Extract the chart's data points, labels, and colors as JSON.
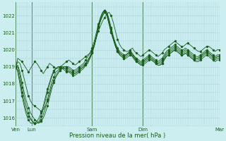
{
  "title": "Pression niveau de la mer( hPa )",
  "bg_color": "#cceef0",
  "grid_color": "#aad4d8",
  "line_color": "#1a5c1a",
  "marker_color": "#1a5c1a",
  "ylim": [
    1015.5,
    1022.8
  ],
  "yticks": [
    1016,
    1017,
    1018,
    1019,
    1020,
    1021,
    1022
  ],
  "xlabel_color": "#1a5c1a",
  "day_labels": [
    "Ven",
    "Lun",
    "Sam",
    "Dim",
    "Mar"
  ],
  "day_positions": [
    0.0,
    0.08,
    0.375,
    0.625,
    1.0
  ],
  "total_points": 97,
  "series": [
    [
      1019.0,
      1019.5,
      1019.4,
      1019.3,
      1019.1,
      1018.9,
      1018.7,
      1018.9,
      1019.1,
      1019.3,
      1019.2,
      1019.0,
      1018.8,
      1018.6,
      1018.8,
      1019.0,
      1019.2,
      1019.1,
      1019.0,
      1018.9,
      1018.9,
      1019.0,
      1019.1,
      1019.2,
      1019.3,
      1019.4,
      1019.3,
      1019.2,
      1019.1,
      1019.2,
      1019.3,
      1019.4,
      1019.5,
      1019.6,
      1019.7,
      1019.8,
      1020.0,
      1020.3,
      1020.7,
      1021.1,
      1021.4,
      1021.7,
      1021.9,
      1022.1,
      1022.2,
      1022.0,
      1021.6,
      1021.1,
      1020.6,
      1020.3,
      1020.1,
      1020.0,
      1019.9,
      1019.9,
      1020.0,
      1020.1,
      1019.9,
      1019.8,
      1019.7,
      1019.6,
      1019.7,
      1019.8,
      1019.9,
      1020.0,
      1019.9,
      1019.8,
      1019.7,
      1019.6,
      1019.7,
      1019.8,
      1020.0,
      1020.1,
      1020.2,
      1020.3,
      1020.4,
      1020.5,
      1020.4,
      1020.3,
      1020.2,
      1020.2,
      1020.3,
      1020.4,
      1020.3,
      1020.2,
      1020.1,
      1020.0,
      1019.9,
      1019.9,
      1020.0,
      1020.1,
      1020.2,
      1020.2,
      1020.1,
      1020.0,
      1019.9,
      1020.0,
      1020.0
    ],
    [
      1019.0,
      1019.3,
      1019.2,
      1018.8,
      1018.3,
      1017.8,
      1017.3,
      1017.0,
      1016.8,
      1016.7,
      1016.6,
      1016.5,
      1016.4,
      1016.5,
      1016.7,
      1017.0,
      1017.4,
      1017.9,
      1018.2,
      1018.5,
      1018.7,
      1018.8,
      1018.9,
      1019.0,
      1019.0,
      1019.0,
      1018.9,
      1018.8,
      1018.8,
      1018.9,
      1019.0,
      1019.1,
      1019.2,
      1019.4,
      1019.6,
      1019.8,
      1020.1,
      1020.5,
      1021.0,
      1021.5,
      1021.9,
      1022.2,
      1022.3,
      1022.2,
      1021.8,
      1021.3,
      1020.8,
      1020.4,
      1020.1,
      1019.9,
      1019.8,
      1019.7,
      1019.7,
      1019.8,
      1019.9,
      1019.8,
      1019.6,
      1019.5,
      1019.4,
      1019.3,
      1019.4,
      1019.5,
      1019.6,
      1019.7,
      1019.6,
      1019.5,
      1019.4,
      1019.3,
      1019.4,
      1019.5,
      1019.7,
      1019.9,
      1020.0,
      1020.1,
      1020.2,
      1020.3,
      1020.2,
      1020.1,
      1020.0,
      1020.0,
      1020.1,
      1020.0,
      1019.9,
      1019.8,
      1019.7,
      1019.6,
      1019.6,
      1019.7,
      1019.8,
      1019.9,
      1020.0,
      1019.9,
      1019.8,
      1019.7,
      1019.6,
      1019.7,
      1019.7
    ],
    [
      1019.0,
      1019.1,
      1018.7,
      1018.1,
      1017.5,
      1017.0,
      1016.6,
      1016.3,
      1016.1,
      1015.9,
      1015.8,
      1015.7,
      1015.8,
      1016.0,
      1016.3,
      1016.7,
      1017.2,
      1017.7,
      1018.1,
      1018.4,
      1018.6,
      1018.8,
      1018.9,
      1018.9,
      1018.9,
      1018.8,
      1018.7,
      1018.6,
      1018.6,
      1018.7,
      1018.8,
      1018.9,
      1019.0,
      1019.2,
      1019.4,
      1019.6,
      1019.9,
      1020.3,
      1020.8,
      1021.4,
      1021.9,
      1022.2,
      1022.3,
      1022.2,
      1021.7,
      1021.2,
      1020.7,
      1020.3,
      1020.0,
      1019.8,
      1019.7,
      1019.6,
      1019.7,
      1019.8,
      1019.8,
      1019.7,
      1019.5,
      1019.4,
      1019.3,
      1019.2,
      1019.3,
      1019.4,
      1019.5,
      1019.6,
      1019.5,
      1019.4,
      1019.3,
      1019.2,
      1019.3,
      1019.4,
      1019.6,
      1019.8,
      1019.9,
      1020.0,
      1020.1,
      1020.2,
      1020.1,
      1020.0,
      1019.9,
      1019.9,
      1020.0,
      1019.9,
      1019.8,
      1019.7,
      1019.6,
      1019.5,
      1019.5,
      1019.6,
      1019.7,
      1019.8,
      1019.9,
      1019.8,
      1019.7,
      1019.6,
      1019.5,
      1019.6,
      1019.6
    ],
    [
      1019.0,
      1019.0,
      1018.5,
      1017.8,
      1017.2,
      1016.7,
      1016.3,
      1016.0,
      1015.8,
      1015.7,
      1015.7,
      1015.7,
      1015.9,
      1016.2,
      1016.6,
      1017.1,
      1017.6,
      1018.1,
      1018.4,
      1018.7,
      1018.8,
      1018.9,
      1019.0,
      1019.0,
      1019.0,
      1018.9,
      1018.8,
      1018.7,
      1018.7,
      1018.8,
      1018.9,
      1019.0,
      1019.1,
      1019.2,
      1019.4,
      1019.6,
      1019.9,
      1020.3,
      1020.8,
      1021.4,
      1021.8,
      1022.1,
      1022.3,
      1022.1,
      1021.6,
      1021.1,
      1020.7,
      1020.3,
      1020.0,
      1019.8,
      1019.7,
      1019.6,
      1019.7,
      1019.8,
      1019.9,
      1019.7,
      1019.6,
      1019.4,
      1019.3,
      1019.2,
      1019.3,
      1019.4,
      1019.5,
      1019.6,
      1019.5,
      1019.4,
      1019.3,
      1019.2,
      1019.2,
      1019.3,
      1019.5,
      1019.7,
      1019.8,
      1019.9,
      1020.0,
      1020.1,
      1020.0,
      1019.9,
      1019.8,
      1019.8,
      1019.9,
      1019.8,
      1019.7,
      1019.6,
      1019.5,
      1019.5,
      1019.5,
      1019.6,
      1019.7,
      1019.8,
      1019.9,
      1019.8,
      1019.7,
      1019.6,
      1019.5,
      1019.6,
      1019.6
    ],
    [
      1019.0,
      1018.8,
      1018.2,
      1017.5,
      1016.9,
      1016.4,
      1016.1,
      1015.9,
      1015.8,
      1015.7,
      1015.7,
      1015.8,
      1016.1,
      1016.5,
      1017.0,
      1017.5,
      1018.0,
      1018.4,
      1018.7,
      1018.9,
      1019.0,
      1019.0,
      1019.0,
      1018.9,
      1018.8,
      1018.7,
      1018.7,
      1018.6,
      1018.6,
      1018.7,
      1018.8,
      1018.9,
      1019.0,
      1019.1,
      1019.3,
      1019.5,
      1019.8,
      1020.2,
      1020.7,
      1021.3,
      1021.7,
      1022.0,
      1022.2,
      1022.0,
      1021.5,
      1021.0,
      1020.6,
      1020.2,
      1019.9,
      1019.7,
      1019.6,
      1019.5,
      1019.6,
      1019.7,
      1019.8,
      1019.6,
      1019.5,
      1019.3,
      1019.2,
      1019.1,
      1019.2,
      1019.3,
      1019.4,
      1019.5,
      1019.4,
      1019.3,
      1019.2,
      1019.1,
      1019.1,
      1019.2,
      1019.4,
      1019.6,
      1019.7,
      1019.8,
      1019.9,
      1020.0,
      1019.9,
      1019.8,
      1019.7,
      1019.7,
      1019.8,
      1019.7,
      1019.6,
      1019.5,
      1019.4,
      1019.4,
      1019.4,
      1019.5,
      1019.6,
      1019.7,
      1019.8,
      1019.7,
      1019.6,
      1019.5,
      1019.4,
      1019.5,
      1019.5
    ],
    [
      1019.0,
      1018.7,
      1018.0,
      1017.3,
      1016.7,
      1016.2,
      1015.9,
      1015.7,
      1015.7,
      1015.7,
      1015.8,
      1016.0,
      1016.3,
      1016.7,
      1017.2,
      1017.7,
      1018.1,
      1018.5,
      1018.8,
      1018.9,
      1019.0,
      1019.0,
      1018.9,
      1018.8,
      1018.7,
      1018.7,
      1018.6,
      1018.5,
      1018.5,
      1018.6,
      1018.7,
      1018.8,
      1018.9,
      1019.1,
      1019.2,
      1019.5,
      1019.8,
      1020.2,
      1020.7,
      1021.3,
      1021.7,
      1022.0,
      1022.2,
      1022.0,
      1021.5,
      1021.0,
      1020.6,
      1020.2,
      1019.9,
      1019.7,
      1019.6,
      1019.5,
      1019.5,
      1019.6,
      1019.7,
      1019.6,
      1019.4,
      1019.3,
      1019.2,
      1019.1,
      1019.1,
      1019.2,
      1019.3,
      1019.4,
      1019.4,
      1019.3,
      1019.2,
      1019.1,
      1019.1,
      1019.2,
      1019.4,
      1019.6,
      1019.7,
      1019.8,
      1019.9,
      1020.0,
      1019.9,
      1019.8,
      1019.7,
      1019.7,
      1019.8,
      1019.7,
      1019.6,
      1019.5,
      1019.4,
      1019.3,
      1019.3,
      1019.4,
      1019.5,
      1019.6,
      1019.7,
      1019.6,
      1019.5,
      1019.4,
      1019.3,
      1019.4,
      1019.4
    ]
  ]
}
